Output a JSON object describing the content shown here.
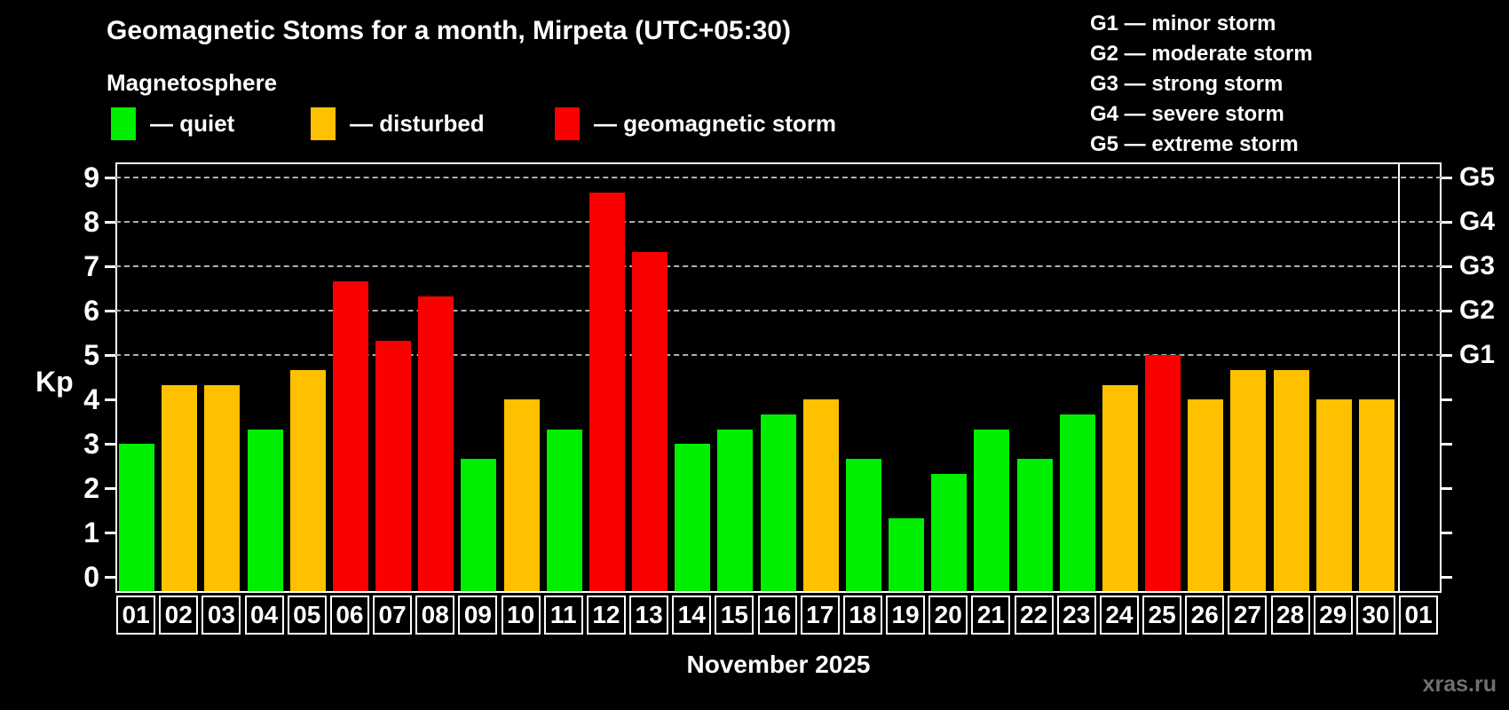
{
  "title": "Geomagnetic Stoms for a month, Mirpeta (UTC+05:30)",
  "subtitle": "Magnetosphere",
  "legend": [
    {
      "status": "quiet",
      "label": "— quiet",
      "color": "#00ee00"
    },
    {
      "status": "disturbed",
      "label": "— disturbed",
      "color": "#ffc000"
    },
    {
      "status": "storm",
      "label": "— geomagnetic storm",
      "color": "#fa0000"
    }
  ],
  "g_scale_legend": [
    "G1 — minor storm",
    "G2 — moderate storm",
    "G3 — strong storm",
    "G4 — severe storm",
    "G5 — extreme storm"
  ],
  "watermark": "xras.ru",
  "chart_data": {
    "type": "bar",
    "title": "Geomagnetic Stoms for a month, Mirpeta (UTC+05:30)",
    "xlabel": "November 2025",
    "ylabel": "Kp",
    "ylim": [
      0,
      9.4
    ],
    "y_ticks": [
      0,
      1,
      2,
      3,
      4,
      5,
      6,
      7,
      8,
      9
    ],
    "right_axis_labels": [
      {
        "kp": 5,
        "label": "G1"
      },
      {
        "kp": 6,
        "label": "G2"
      },
      {
        "kp": 7,
        "label": "G3"
      },
      {
        "kp": 8,
        "label": "G4"
      },
      {
        "kp": 9,
        "label": "G5"
      }
    ],
    "gridlines_at_kp": [
      5,
      6,
      7,
      8,
      9
    ],
    "grid": "horizontal dashed lines at storm levels only",
    "legend_position": "top-left",
    "categories": [
      "01",
      "02",
      "03",
      "04",
      "05",
      "06",
      "07",
      "08",
      "09",
      "10",
      "11",
      "12",
      "13",
      "14",
      "15",
      "16",
      "17",
      "18",
      "19",
      "20",
      "21",
      "22",
      "23",
      "24",
      "25",
      "26",
      "27",
      "28",
      "29",
      "30",
      "01"
    ],
    "values": [
      3,
      4.33,
      4.33,
      3.33,
      4.67,
      6.67,
      5.33,
      6.33,
      2.67,
      4,
      3.33,
      8.67,
      7.33,
      3,
      3.33,
      3.67,
      4,
      2.67,
      1.33,
      2.33,
      3.33,
      2.67,
      3.67,
      4.33,
      5,
      4,
      4.67,
      4.67,
      4,
      4,
      null
    ],
    "status": [
      "quiet",
      "disturbed",
      "disturbed",
      "quiet",
      "disturbed",
      "storm",
      "storm",
      "storm",
      "quiet",
      "disturbed",
      "quiet",
      "storm",
      "storm",
      "quiet",
      "quiet",
      "quiet",
      "disturbed",
      "quiet",
      "quiet",
      "quiet",
      "quiet",
      "quiet",
      "quiet",
      "disturbed",
      "storm",
      "disturbed",
      "disturbed",
      "disturbed",
      "disturbed",
      "disturbed",
      null
    ],
    "colors": {
      "quiet": "#00ee00",
      "disturbed": "#ffc000",
      "storm": "#fa0000"
    }
  }
}
